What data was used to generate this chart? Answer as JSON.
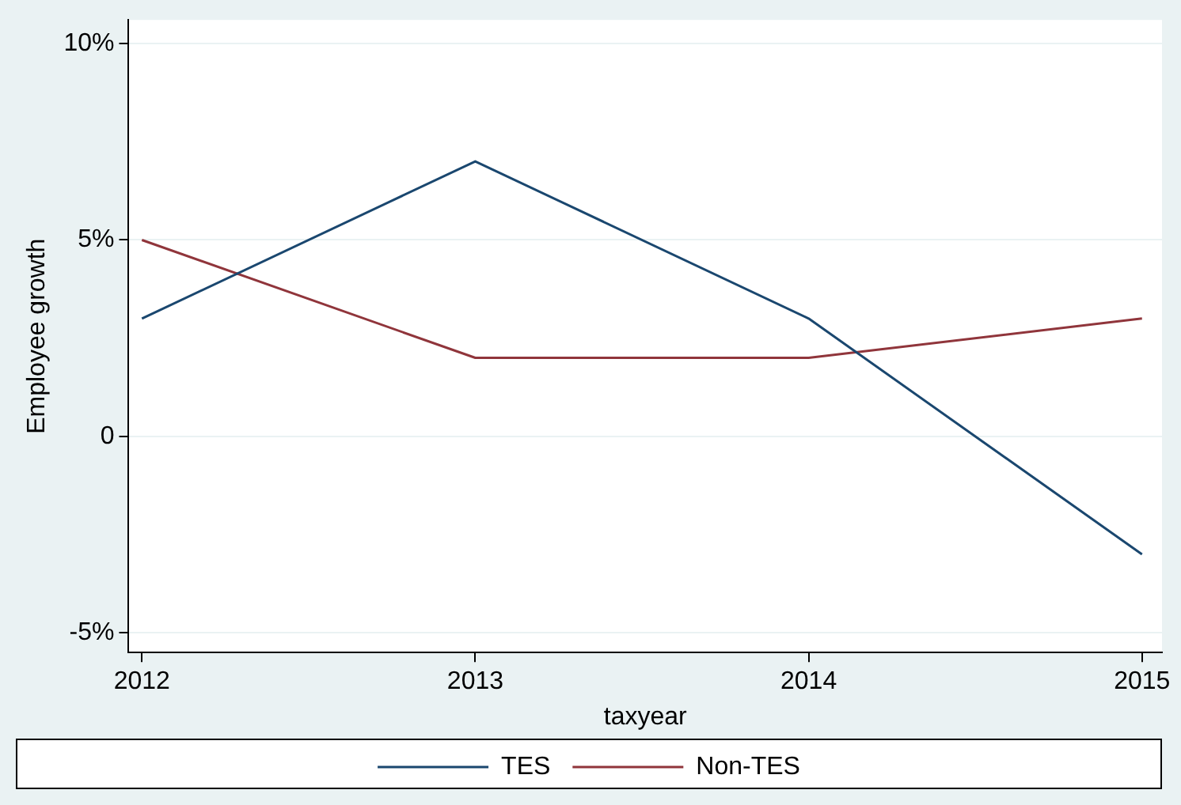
{
  "chart_data": {
    "type": "line",
    "xlabel": "taxyear",
    "ylabel": "Employee growth",
    "x": [
      2012,
      2013,
      2014,
      2015
    ],
    "series": [
      {
        "name": "TES",
        "color": "#1a476f",
        "values": [
          3,
          7,
          3,
          -3
        ]
      },
      {
        "name": "Non-TES",
        "color": "#90353b",
        "values": [
          5,
          2,
          2,
          3
        ]
      }
    ],
    "xlim": [
      2011.96,
      2015.06
    ],
    "xticks": [
      2012,
      2013,
      2014,
      2015
    ],
    "ylim": [
      -5.5,
      10.6
    ],
    "yticks": [
      {
        "value": -5,
        "label": "-5%"
      },
      0,
      {
        "value": 5,
        "label": "5%"
      },
      {
        "value": 10,
        "label": "10%"
      }
    ],
    "grid": "y",
    "legend": "bottom",
    "marker": "none",
    "line_style": "solid"
  }
}
